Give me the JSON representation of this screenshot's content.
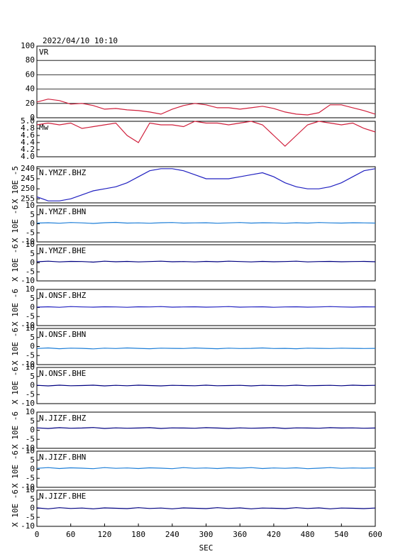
{
  "chart_data": [
    {
      "type": "line",
      "subtitle": "2022/04/10 10:10",
      "title": "VR",
      "color": "#d0203c",
      "grid": true,
      "xlim": [
        0,
        600
      ],
      "ylim": [
        0,
        100
      ],
      "yticks": [
        0,
        20,
        40,
        60,
        80,
        100
      ],
      "x": [
        0,
        20,
        40,
        60,
        80,
        100,
        120,
        140,
        160,
        180,
        200,
        220,
        240,
        260,
        280,
        300,
        320,
        340,
        360,
        380,
        400,
        420,
        440,
        460,
        480,
        500,
        520,
        540,
        560,
        580,
        600
      ],
      "values": [
        22,
        26,
        24,
        19,
        20,
        17,
        12,
        13,
        11,
        10,
        8,
        5,
        12,
        17,
        20,
        18,
        14,
        14,
        12,
        14,
        16,
        13,
        8,
        5,
        4,
        7,
        18,
        18,
        14,
        10,
        5
      ]
    },
    {
      "type": "line",
      "title": "Mw",
      "color": "#d0203c",
      "xlim": [
        0,
        600
      ],
      "ylim": [
        4,
        5
      ],
      "yticks": [
        {
          "value": 4,
          "label": "4.0"
        },
        4.2,
        4.4,
        4.6,
        4.8,
        {
          "value": 5,
          "label": "5.0"
        }
      ],
      "x": [
        0,
        20,
        40,
        60,
        80,
        100,
        120,
        140,
        160,
        180,
        200,
        220,
        240,
        260,
        280,
        300,
        320,
        340,
        360,
        380,
        400,
        420,
        440,
        460,
        480,
        500,
        520,
        540,
        560,
        580,
        600
      ],
      "values": [
        4.9,
        4.95,
        4.9,
        4.95,
        4.8,
        4.85,
        4.9,
        4.95,
        4.6,
        4.4,
        4.95,
        4.9,
        4.9,
        4.85,
        5.0,
        4.95,
        4.95,
        4.9,
        4.95,
        5.0,
        4.9,
        4.6,
        4.3,
        4.6,
        4.9,
        5.0,
        4.95,
        4.9,
        4.95,
        4.8,
        4.7
      ]
    },
    {
      "type": "line",
      "title": "N.YMZF.BHZ",
      "ylabel": "X 10E -5",
      "color": "#2020c0",
      "xlim": [
        0,
        600
      ],
      "ylim": [
        257,
        239
      ],
      "yticks": [
        240,
        245,
        250,
        255
      ],
      "x": [
        0,
        20,
        40,
        60,
        80,
        100,
        120,
        140,
        160,
        180,
        200,
        220,
        240,
        260,
        280,
        300,
        320,
        340,
        360,
        380,
        400,
        420,
        440,
        460,
        480,
        500,
        520,
        540,
        560,
        580,
        600
      ],
      "values": [
        254,
        256,
        256,
        255,
        253,
        251,
        250,
        249,
        247,
        244,
        241,
        240,
        240,
        241,
        243,
        245,
        245,
        245,
        244,
        243,
        242,
        244,
        247,
        249,
        250,
        250,
        249,
        247,
        244,
        241,
        240
      ]
    },
    {
      "type": "line",
      "title": "N.YMZF.BHN",
      "ylabel": "X 10E -6",
      "color": "#1e7fd8",
      "xlim": [
        0,
        600
      ],
      "ylim": [
        -10,
        10
      ],
      "yticks": [
        -10,
        -5,
        0,
        5,
        10
      ],
      "x": [
        0,
        20,
        40,
        60,
        80,
        100,
        120,
        140,
        160,
        180,
        200,
        220,
        240,
        260,
        280,
        300,
        320,
        340,
        360,
        380,
        400,
        420,
        440,
        460,
        480,
        500,
        520,
        540,
        560,
        580,
        600
      ],
      "values": [
        0.4,
        0.6,
        0.3,
        0.7,
        0.5,
        0.2,
        0.6,
        0.8,
        0.4,
        0.5,
        0.3,
        0.6,
        0.7,
        0.4,
        0.5,
        0.6,
        0.3,
        0.5,
        0.7,
        0.4,
        0.6,
        0.5,
        0.3,
        0.6,
        0.4,
        0.7,
        0.5,
        0.4,
        0.6,
        0.5,
        0.4
      ]
    },
    {
      "type": "line",
      "title": "N.YMZF.BHE",
      "ylabel": "X 10E -6",
      "color": "#000080",
      "xlim": [
        0,
        600
      ],
      "ylim": [
        -10,
        10
      ],
      "yticks": [
        -10,
        -5,
        0,
        5,
        10
      ],
      "x": [
        0,
        20,
        40,
        60,
        80,
        100,
        120,
        140,
        160,
        180,
        200,
        220,
        240,
        260,
        280,
        300,
        320,
        340,
        360,
        380,
        400,
        420,
        440,
        460,
        480,
        500,
        520,
        540,
        560,
        580,
        600
      ],
      "values": [
        0.6,
        0.9,
        0.5,
        0.8,
        0.7,
        0.4,
        0.9,
        0.6,
        0.8,
        0.5,
        0.7,
        0.9,
        0.6,
        0.7,
        0.5,
        0.8,
        0.6,
        0.9,
        0.7,
        0.5,
        0.8,
        0.6,
        0.7,
        0.9,
        0.5,
        0.7,
        0.8,
        0.6,
        0.7,
        0.8,
        0.6
      ]
    },
    {
      "type": "line",
      "title": "N.ONSF.BHZ",
      "ylabel": "X 10E -6",
      "color": "#2020c0",
      "xlim": [
        0,
        600
      ],
      "ylim": [
        -10,
        10
      ],
      "yticks": [
        -10,
        -5,
        0,
        5,
        10
      ],
      "x": [
        0,
        20,
        40,
        60,
        80,
        100,
        120,
        140,
        160,
        180,
        200,
        220,
        240,
        260,
        280,
        300,
        320,
        340,
        360,
        380,
        400,
        420,
        440,
        460,
        480,
        500,
        520,
        540,
        560,
        580,
        600
      ],
      "values": [
        0.2,
        0.4,
        0.1,
        0.5,
        0.3,
        0.2,
        0.4,
        0.3,
        0.1,
        0.4,
        0.3,
        0.5,
        0.2,
        0.3,
        0.4,
        0.2,
        0.3,
        0.5,
        0.2,
        0.3,
        0.4,
        0.1,
        0.3,
        0.4,
        0.2,
        0.3,
        0.5,
        0.3,
        0.2,
        0.4,
        0.3
      ]
    },
    {
      "type": "line",
      "title": "N.ONSF.BHN",
      "ylabel": "X 10E -6",
      "color": "#1e7fd8",
      "xlim": [
        0,
        600
      ],
      "ylim": [
        -10,
        10
      ],
      "yticks": [
        -10,
        -5,
        0,
        5,
        10
      ],
      "x": [
        0,
        20,
        40,
        60,
        80,
        100,
        120,
        140,
        160,
        180,
        200,
        220,
        240,
        260,
        280,
        300,
        320,
        340,
        360,
        380,
        400,
        420,
        440,
        460,
        480,
        500,
        520,
        540,
        560,
        580,
        600
      ],
      "values": [
        -1.1,
        -0.8,
        -1.2,
        -0.9,
        -1.0,
        -1.3,
        -0.9,
        -1.1,
        -0.8,
        -1.0,
        -1.2,
        -0.9,
        -1.0,
        -1.1,
        -0.8,
        -1.0,
        -1.2,
        -0.9,
        -1.1,
        -1.0,
        -0.8,
        -1.1,
        -1.0,
        -1.2,
        -0.9,
        -1.0,
        -1.1,
        -0.9,
        -1.0,
        -1.1,
        -1.0
      ]
    },
    {
      "type": "line",
      "title": "N.ONSF.BHE",
      "ylabel": "X 10E -6",
      "color": "#000080",
      "xlim": [
        0,
        600
      ],
      "ylim": [
        -10,
        10
      ],
      "yticks": [
        -10,
        -5,
        0,
        5,
        10
      ],
      "x": [
        0,
        20,
        40,
        60,
        80,
        100,
        120,
        140,
        160,
        180,
        200,
        220,
        240,
        260,
        280,
        300,
        320,
        340,
        360,
        380,
        400,
        420,
        440,
        460,
        480,
        500,
        520,
        540,
        560,
        580,
        600
      ],
      "values": [
        0.1,
        -0.2,
        0.2,
        -0.1,
        0,
        0.2,
        -0.2,
        0.1,
        -0.1,
        0.2,
        0,
        -0.2,
        0.1,
        0,
        -0.1,
        0.2,
        -0.1,
        0,
        0.1,
        -0.2,
        0.1,
        0,
        -0.1,
        0.2,
        -0.1,
        0,
        0.1,
        -0.1,
        0.2,
        0,
        0.1
      ]
    },
    {
      "type": "line",
      "title": "N.JIZF.BHZ",
      "ylabel": "X 10E -6",
      "color": "#000080",
      "xlim": [
        0,
        600
      ],
      "ylim": [
        -10,
        10
      ],
      "yticks": [
        -10,
        -5,
        0,
        5,
        10
      ],
      "x": [
        0,
        20,
        40,
        60,
        80,
        100,
        120,
        140,
        160,
        180,
        200,
        220,
        240,
        260,
        280,
        300,
        320,
        340,
        360,
        380,
        400,
        420,
        440,
        460,
        480,
        500,
        520,
        540,
        560,
        580,
        600
      ],
      "values": [
        1.3,
        1.0,
        1.4,
        1.1,
        1.2,
        1.5,
        1.0,
        1.3,
        1.1,
        1.2,
        1.4,
        1.0,
        1.3,
        1.2,
        1.1,
        1.4,
        1.2,
        1.0,
        1.3,
        1.1,
        1.2,
        1.4,
        1.0,
        1.3,
        1.2,
        1.1,
        1.4,
        1.2,
        1.3,
        1.1,
        1.2
      ]
    },
    {
      "type": "line",
      "title": "N.JIZF.BHN",
      "ylabel": "X 10E -6",
      "color": "#1e7fd8",
      "xlim": [
        0,
        600
      ],
      "ylim": [
        -10,
        10
      ],
      "yticks": [
        -10,
        -5,
        0,
        5,
        10
      ],
      "x": [
        0,
        20,
        40,
        60,
        80,
        100,
        120,
        140,
        160,
        180,
        200,
        220,
        240,
        260,
        280,
        300,
        320,
        340,
        360,
        380,
        400,
        420,
        440,
        460,
        480,
        500,
        520,
        540,
        560,
        580,
        600
      ],
      "values": [
        0.5,
        0.9,
        0.4,
        0.8,
        0.6,
        0.3,
        0.9,
        0.5,
        0.7,
        0.4,
        0.8,
        0.6,
        0.3,
        0.9,
        0.5,
        0.7,
        0.4,
        0.8,
        0.6,
        0.9,
        0.4,
        0.7,
        0.5,
        0.8,
        0.3,
        0.6,
        0.9,
        0.5,
        0.7,
        0.6,
        0.7
      ]
    },
    {
      "type": "line",
      "title": "N.JIZF.BHE",
      "ylabel": "X 10E -6",
      "xlabel": "SEC",
      "color": "#000080",
      "xlim": [
        0,
        600
      ],
      "ylim": [
        -10,
        10
      ],
      "yticks": [
        -10,
        -5,
        0,
        5,
        10
      ],
      "xticks": [
        0,
        60,
        120,
        180,
        240,
        300,
        360,
        420,
        480,
        540,
        600
      ],
      "x": [
        0,
        20,
        40,
        60,
        80,
        100,
        120,
        140,
        160,
        180,
        200,
        220,
        240,
        260,
        280,
        300,
        320,
        340,
        360,
        380,
        400,
        420,
        440,
        460,
        480,
        500,
        520,
        540,
        560,
        580,
        600
      ],
      "values": [
        0.2,
        -0.3,
        0.3,
        -0.1,
        0.1,
        -0.3,
        0.2,
        0,
        -0.2,
        0.3,
        -0.1,
        0.1,
        -0.3,
        0.2,
        0,
        -0.2,
        0.3,
        -0.1,
        0.2,
        -0.3,
        0.1,
        0,
        -0.2,
        0.3,
        -0.1,
        0.2,
        -0.3,
        0.1,
        0,
        -0.2,
        0.1
      ]
    }
  ]
}
